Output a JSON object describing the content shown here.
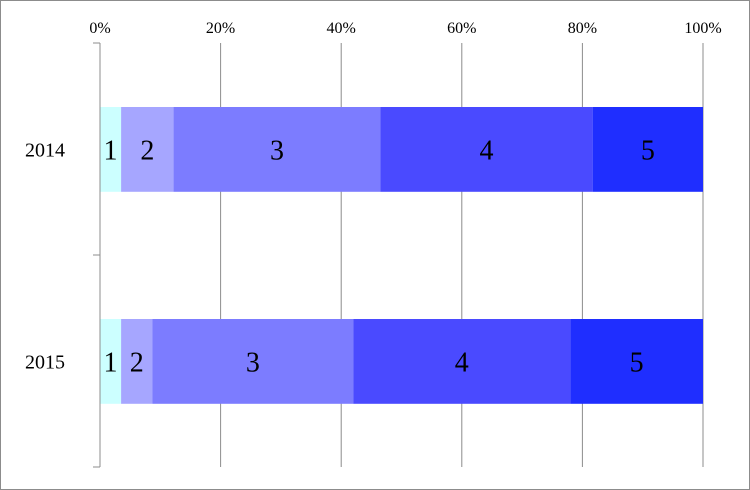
{
  "chart_data": {
    "type": "bar",
    "orientation": "horizontal",
    "stacked": "percent",
    "title": "",
    "xlabel": "",
    "ylabel": "",
    "xlim": [
      0,
      100
    ],
    "x_ticks": [
      "0%",
      "20%",
      "40%",
      "60%",
      "80%",
      "100%"
    ],
    "x_axis_position": "top",
    "grid": true,
    "legend": "none",
    "categories": [
      "2014",
      "2015"
    ],
    "series": [
      {
        "color": "#ccffff",
        "label": "1",
        "values": [
          3.5,
          3.5
        ]
      },
      {
        "color": "#a6a6ff",
        "label": "2",
        "values": [
          8.7,
          5.2
        ]
      },
      {
        "color": "#7c7cff",
        "label": "3",
        "values": [
          34.3,
          33.3
        ]
      },
      {
        "color": "#4a4aff",
        "label": "4",
        "values": [
          35.2,
          36.0
        ]
      },
      {
        "color": "#1f2eff",
        "label": "5",
        "values": [
          18.3,
          22.0
        ]
      }
    ]
  }
}
